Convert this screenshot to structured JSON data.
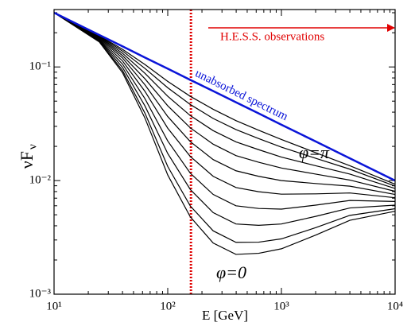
{
  "chart_data": {
    "type": "line",
    "x_label": "E [GeV]",
    "y_label": "νF",
    "y_label_sub": "ν",
    "xscale": "log",
    "yscale": "log",
    "xlim": [
      10,
      10000
    ],
    "ylim": [
      0.001,
      0.32
    ],
    "xticks": [
      {
        "value": 10,
        "label": "10¹"
      },
      {
        "value": 100,
        "label": "10²"
      },
      {
        "value": 1000,
        "label": "10³"
      },
      {
        "value": 10000,
        "label": "10⁴"
      }
    ],
    "yticks": [
      {
        "value": 0.001,
        "label": "10⁻³"
      },
      {
        "value": 0.01,
        "label": "10⁻²"
      },
      {
        "value": 0.1,
        "label": "10⁻¹"
      }
    ],
    "x": [
      10,
      25,
      40,
      63,
      100,
      158,
      251,
      398,
      631,
      1000,
      2000,
      4000,
      10000
    ],
    "series": [
      {
        "color": "#000000",
        "values": [
          0.3,
          0.166,
          0.0891,
          0.0355,
          0.0112,
          0.00479,
          0.00282,
          0.00224,
          0.00229,
          0.00251,
          0.00331,
          0.00447,
          0.00537
        ]
      },
      {
        "color": "#000000",
        "values": [
          0.3,
          0.168,
          0.0931,
          0.0392,
          0.0133,
          0.00597,
          0.00361,
          0.00286,
          0.00287,
          0.00307,
          0.00385,
          0.00494,
          0.00565
        ]
      },
      {
        "color": "#000000",
        "values": [
          0.3,
          0.171,
          0.0991,
          0.0454,
          0.0173,
          0.00834,
          0.00522,
          0.00415,
          0.00404,
          0.00415,
          0.00484,
          0.00574,
          0.00608
        ]
      },
      {
        "color": "#000000",
        "values": [
          0.3,
          0.173,
          0.106,
          0.0526,
          0.0223,
          0.0116,
          0.00755,
          0.006,
          0.00568,
          0.00561,
          0.00608,
          0.00668,
          0.00655
        ]
      },
      {
        "color": "#000000",
        "values": [
          0.3,
          0.176,
          0.113,
          0.061,
          0.0289,
          0.0163,
          0.0109,
          0.00869,
          0.00798,
          0.00759,
          0.00764,
          0.00778,
          0.00706
        ]
      },
      {
        "color": "#000000",
        "values": [
          0.3,
          0.179,
          0.12,
          0.0697,
          0.0366,
          0.022,
          0.0153,
          0.0122,
          0.0109,
          0.01,
          0.00942,
          0.00893,
          0.00755
        ]
      },
      {
        "color": "#000000",
        "values": [
          0.3,
          0.182,
          0.126,
          0.0787,
          0.0455,
          0.0291,
          0.0209,
          0.0166,
          0.0145,
          0.0129,
          0.0114,
          0.0101,
          0.00804
        ]
      },
      {
        "color": "#000000",
        "values": [
          0.3,
          0.184,
          0.132,
          0.0879,
          0.0552,
          0.0373,
          0.0275,
          0.0219,
          0.0187,
          0.0161,
          0.0135,
          0.0114,
          0.00851
        ]
      },
      {
        "color": "#000000",
        "values": [
          0.3,
          0.186,
          0.138,
          0.097,
          0.0656,
          0.0467,
          0.0352,
          0.0281,
          0.0234,
          0.0197,
          0.0157,
          0.0126,
          0.00893
        ]
      },
      {
        "color": "#000000",
        "values": [
          0.3,
          0.188,
          0.143,
          0.105,
          0.0746,
          0.0551,
          0.0424,
          0.0337,
          0.0277,
          0.023,
          0.0176,
          0.0135,
          0.00929
        ]
      },
      {
        "color": "#0a14d8",
        "values": [
          0.3,
          0.191,
          0.152,
          0.121,
          0.0966,
          0.0769,
          0.0614,
          0.0489,
          0.039,
          0.031,
          0.0221,
          0.0157,
          0.01
        ]
      }
    ],
    "threshold_energy": 160,
    "threshold_color": "#e00000",
    "annotations": {
      "unabsorbed": "unabsorbed spectrum",
      "phi_pi": "φ=π",
      "phi_zero": "φ=0",
      "hess": "H.E.S.S. observations"
    }
  }
}
